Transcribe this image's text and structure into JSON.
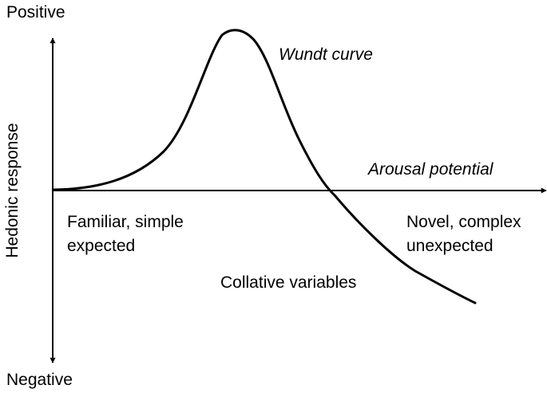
{
  "labels": {
    "y_positive": "Positive",
    "y_negative": "Negative",
    "y_axis": "Hedonic response",
    "x_axis": "Arousal potential",
    "curve": "Wundt curve",
    "left_line1": "Familiar, simple",
    "left_line2": "expected",
    "right_line1": "Novel, complex",
    "right_line2": "unexpected",
    "bottom": "Collative variables"
  },
  "colors": {
    "ink": "#000000",
    "background": "#ffffff"
  }
}
